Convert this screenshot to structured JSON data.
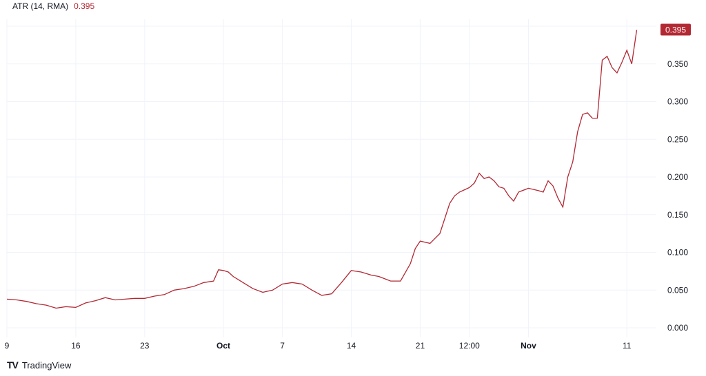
{
  "indicator": {
    "label": "ATR (14, RMA)",
    "value": "0.395",
    "color": "#b22833"
  },
  "brand": {
    "logo_text": "TV",
    "name": "TradingView"
  },
  "chart_data": {
    "type": "line",
    "title": "",
    "xlabel": "",
    "ylabel": "",
    "ylim": [
      0,
      0.4
    ],
    "y_ticks": [
      0.0,
      0.05,
      0.1,
      0.15,
      0.2,
      0.25,
      0.3,
      0.35
    ],
    "y_tick_labels": [
      "0.000",
      "0.050",
      "0.100",
      "0.150",
      "0.200",
      "0.250",
      "0.300",
      "0.350"
    ],
    "x_tick_labels": [
      {
        "label": "9",
        "bold": false,
        "pos": 0
      },
      {
        "label": "16",
        "bold": false,
        "pos": 7
      },
      {
        "label": "23",
        "bold": false,
        "pos": 14
      },
      {
        "label": "Oct",
        "bold": true,
        "pos": 22
      },
      {
        "label": "7",
        "bold": false,
        "pos": 28
      },
      {
        "label": "14",
        "bold": false,
        "pos": 35
      },
      {
        "label": "21",
        "bold": false,
        "pos": 42
      },
      {
        "label": "12:00",
        "bold": false,
        "pos": 47
      },
      {
        "label": "Nov",
        "bold": true,
        "pos": 53
      },
      {
        "label": "11",
        "bold": false,
        "pos": 63
      }
    ],
    "last_value_label": "0.395",
    "grid": true,
    "line_color": "#b22833",
    "series": [
      {
        "name": "ATR (14, RMA)",
        "x": [
          0,
          1,
          2,
          3,
          4,
          5,
          6,
          7,
          8,
          9,
          10,
          11,
          12,
          13,
          14,
          15,
          16,
          17,
          18,
          19,
          20,
          21,
          21.5,
          22,
          22.5,
          23,
          24,
          25,
          26,
          27,
          28,
          29,
          30,
          31,
          32,
          33,
          34,
          35,
          36,
          37,
          37.8,
          38,
          39,
          40,
          41,
          41.5,
          42,
          43,
          44,
          45,
          45.5,
          46,
          46.5,
          47,
          47.5,
          48,
          48.5,
          49,
          49.5,
          50,
          50.5,
          51,
          51.5,
          52,
          53,
          54,
          54.5,
          55,
          55.5,
          56,
          56.5,
          57,
          57.5,
          58,
          58.5,
          59,
          59.5,
          60,
          60.5,
          61,
          61.5,
          62,
          62.5,
          63,
          63.5,
          64
        ],
        "y": [
          0.038,
          0.037,
          0.035,
          0.032,
          0.03,
          0.026,
          0.028,
          0.027,
          0.033,
          0.036,
          0.04,
          0.037,
          0.038,
          0.039,
          0.039,
          0.042,
          0.044,
          0.05,
          0.052,
          0.055,
          0.06,
          0.062,
          0.077,
          0.076,
          0.074,
          0.068,
          0.06,
          0.052,
          0.047,
          0.05,
          0.058,
          0.06,
          0.058,
          0.05,
          0.043,
          0.045,
          0.06,
          0.076,
          0.074,
          0.07,
          0.068,
          0.067,
          0.062,
          0.062,
          0.085,
          0.105,
          0.115,
          0.112,
          0.125,
          0.165,
          0.175,
          0.18,
          0.183,
          0.186,
          0.192,
          0.205,
          0.198,
          0.2,
          0.195,
          0.187,
          0.185,
          0.175,
          0.168,
          0.18,
          0.185,
          0.182,
          0.18,
          0.195,
          0.188,
          0.172,
          0.16,
          0.2,
          0.22,
          0.26,
          0.283,
          0.285,
          0.278,
          0.278,
          0.355,
          0.36,
          0.345,
          0.338,
          0.352,
          0.368,
          0.35,
          0.395
        ]
      }
    ]
  }
}
